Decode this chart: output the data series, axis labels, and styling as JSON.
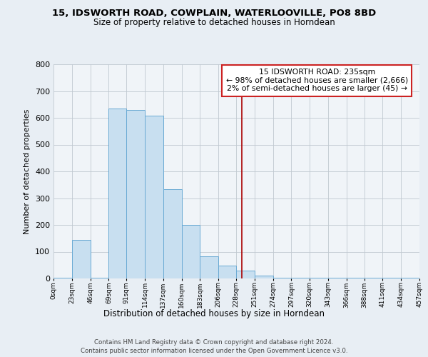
{
  "title": "15, IDSWORTH ROAD, COWPLAIN, WATERLOOVILLE, PO8 8BD",
  "subtitle": "Size of property relative to detached houses in Horndean",
  "xlabel": "Distribution of detached houses by size in Horndean",
  "ylabel": "Number of detached properties",
  "bar_color": "#c8dff0",
  "bar_edge_color": "#6aaad4",
  "background_color": "#e8eef4",
  "plot_background": "#f0f4f8",
  "grid_color": "#c0c8d0",
  "bin_edges": [
    0,
    23,
    46,
    69,
    91,
    114,
    137,
    160,
    183,
    206,
    228,
    251,
    274,
    297,
    320,
    343,
    366,
    388,
    411,
    434,
    457
  ],
  "bin_labels": [
    "0sqm",
    "23sqm",
    "46sqm",
    "69sqm",
    "91sqm",
    "114sqm",
    "137sqm",
    "160sqm",
    "183sqm",
    "206sqm",
    "228sqm",
    "251sqm",
    "274sqm",
    "297sqm",
    "320sqm",
    "343sqm",
    "366sqm",
    "388sqm",
    "411sqm",
    "434sqm",
    "457sqm"
  ],
  "bar_heights": [
    2,
    143,
    2,
    635,
    630,
    608,
    333,
    201,
    83,
    47,
    29,
    12,
    2,
    2,
    2,
    2,
    2,
    2,
    2,
    2
  ],
  "property_size": 235,
  "vline_color": "#aa0000",
  "annotation_line1": "15 IDSWORTH ROAD: 235sqm",
  "annotation_line2": "← 98% of detached houses are smaller (2,666)",
  "annotation_line3": "2% of semi-detached houses are larger (45) →",
  "ylim": [
    0,
    800
  ],
  "yticks": [
    0,
    100,
    200,
    300,
    400,
    500,
    600,
    700,
    800
  ],
  "footer_line1": "Contains HM Land Registry data © Crown copyright and database right 2024.",
  "footer_line2": "Contains public sector information licensed under the Open Government Licence v3.0."
}
